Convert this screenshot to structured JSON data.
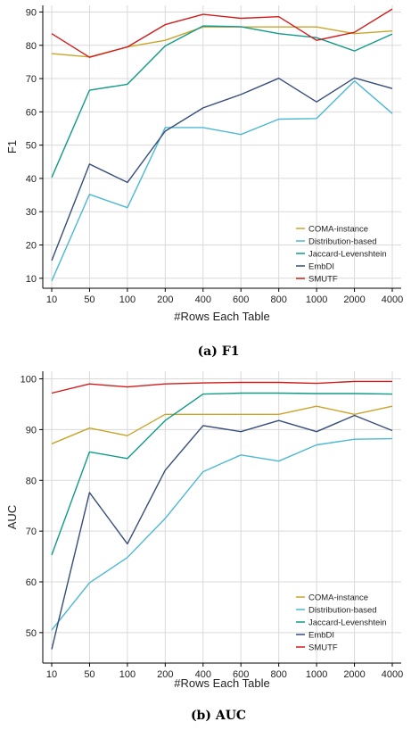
{
  "chart_data": [
    {
      "type": "line",
      "caption": "(a) F1",
      "xlabel": "#Rows Each Table",
      "ylabel": "F1",
      "categories": [
        "10",
        "50",
        "100",
        "200",
        "400",
        "600",
        "800",
        "1000",
        "2000",
        "4000"
      ],
      "ylim": [
        7,
        92
      ],
      "yticks": [
        10,
        20,
        30,
        40,
        50,
        60,
        70,
        80,
        90
      ],
      "grid": true,
      "legend_position": "bottom-right",
      "series": [
        {
          "name": "COMA-instance",
          "color": "#c8a52a",
          "values": [
            77.5,
            76.5,
            79.5,
            81.5,
            85.5,
            85.5,
            85.5,
            85.5,
            83.5,
            84.3
          ]
        },
        {
          "name": "Distribution-based",
          "color": "#4db8d4",
          "values": [
            9.2,
            35.2,
            31.2,
            55.3,
            55.3,
            53.2,
            57.8,
            58.0,
            69.3,
            59.5
          ]
        },
        {
          "name": "Jaccard-Levenshtein",
          "color": "#119a87",
          "values": [
            40.3,
            66.5,
            68.3,
            79.8,
            85.8,
            85.6,
            83.5,
            82.3,
            78.3,
            83.4
          ]
        },
        {
          "name": "EmbDI",
          "color": "#364d7a",
          "values": [
            15.3,
            44.3,
            38.8,
            54.2,
            61.2,
            65.2,
            70.1,
            63.0,
            70.2,
            67.0
          ]
        },
        {
          "name": "SMUTF",
          "color": "#d01c1c",
          "values": [
            83.5,
            76.4,
            79.5,
            86.2,
            89.3,
            88.1,
            88.6,
            81.5,
            83.9,
            90.9
          ]
        }
      ]
    },
    {
      "type": "line",
      "caption": "(b) AUC",
      "xlabel": "#Rows Each Table",
      "ylabel": "AUC",
      "categories": [
        "10",
        "50",
        "100",
        "200",
        "400",
        "600",
        "800",
        "1000",
        "2000",
        "4000"
      ],
      "ylim": [
        44,
        101.5
      ],
      "yticks": [
        50,
        60,
        70,
        80,
        90,
        100
      ],
      "grid": true,
      "legend_position": "bottom-right",
      "series": [
        {
          "name": "COMA-instance",
          "color": "#c8a52a",
          "values": [
            87.2,
            90.3,
            88.8,
            93.0,
            93.0,
            93.0,
            93.0,
            94.6,
            93.0,
            94.6
          ]
        },
        {
          "name": "Distribution-based",
          "color": "#4db8d4",
          "values": [
            50.5,
            59.8,
            64.8,
            72.5,
            81.7,
            85.0,
            83.8,
            87.0,
            88.1,
            88.2
          ]
        },
        {
          "name": "Jaccard-Levenshtein",
          "color": "#119a87",
          "values": [
            65.3,
            85.6,
            84.3,
            91.8,
            97.0,
            97.2,
            97.2,
            97.1,
            97.1,
            97.0
          ]
        },
        {
          "name": "EmbDI",
          "color": "#364d7a",
          "values": [
            46.7,
            77.6,
            67.5,
            82.0,
            90.8,
            89.6,
            91.8,
            89.6,
            92.8,
            89.8
          ]
        },
        {
          "name": "SMUTF",
          "color": "#d01c1c",
          "values": [
            97.2,
            99.0,
            98.4,
            99.0,
            99.2,
            99.3,
            99.3,
            99.1,
            99.5,
            99.5
          ]
        }
      ]
    }
  ]
}
